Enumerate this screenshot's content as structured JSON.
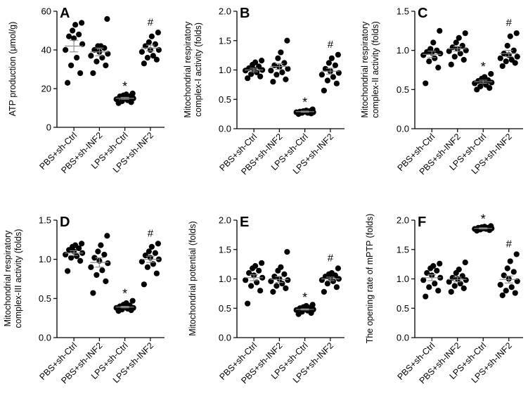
{
  "chart_data": [
    {
      "letter": "A",
      "type": "scatter",
      "ylabel": "ATP production (μmol/g)",
      "ylim": [
        0,
        60
      ],
      "yticks": [
        0,
        20,
        40,
        60
      ],
      "yticklabels": [
        "0",
        "20",
        "40",
        "60"
      ],
      "categories": [
        "PBS+sh-Ctrl",
        "PBS+sh-INF2",
        "LPS+sh-Ctrl",
        "LPS+sh-INF2"
      ],
      "series": [
        {
          "values": [
            23,
            28,
            32,
            36,
            40,
            43,
            46,
            47,
            48,
            50,
            53,
            54
          ],
          "mean": 42,
          "sem": 3
        },
        {
          "values": [
            28,
            32,
            34,
            36,
            37,
            38,
            39,
            40,
            41,
            42,
            42,
            56
          ],
          "mean": 39,
          "sem": 2
        },
        {
          "values": [
            12.5,
            13,
            13.5,
            14,
            14.5,
            15,
            15.5,
            16,
            16,
            16.5,
            17,
            17.5
          ],
          "mean": 15,
          "sem": 0.5
        },
        {
          "values": [
            33,
            35,
            36,
            37,
            39,
            40,
            40,
            42,
            43,
            44,
            47,
            49
          ],
          "mean": 41,
          "sem": 1.5
        }
      ],
      "annotations": [
        "",
        "",
        "*",
        "#"
      ]
    },
    {
      "letter": "B",
      "type": "scatter",
      "ylabel": "Mitochondrial respiratory\ncomplex-I activity (folds)",
      "ylim": [
        0,
        2.0
      ],
      "yticks": [
        0,
        0.5,
        1.0,
        1.5,
        2.0
      ],
      "yticklabels": [
        "0.0",
        "0.5",
        "1.0",
        "1.5",
        "2.0"
      ],
      "categories": [
        "PBS+sh-Ctrl",
        "PBS+sh-INF2",
        "LPS+sh-Ctrl",
        "LPS+sh-INF2"
      ],
      "series": [
        {
          "values": [
            0.86,
            0.89,
            0.93,
            0.96,
            0.99,
            1.0,
            1.01,
            1.03,
            1.06,
            1.09,
            1.13,
            1.16
          ],
          "mean": 1.0,
          "sem": 0.03
        },
        {
          "values": [
            0.8,
            0.84,
            0.92,
            0.96,
            0.99,
            1.02,
            1.05,
            1.08,
            1.12,
            1.2,
            1.3,
            1.5
          ],
          "mean": 1.06,
          "sem": 0.05
        },
        {
          "values": [
            0.25,
            0.26,
            0.27,
            0.27,
            0.28,
            0.28,
            0.29,
            0.29,
            0.3,
            0.3,
            0.31,
            0.33
          ],
          "mean": 0.29,
          "sem": 0.01
        },
        {
          "values": [
            0.65,
            0.77,
            0.82,
            0.88,
            0.92,
            0.95,
            0.98,
            1.02,
            1.08,
            1.12,
            1.2,
            1.26
          ],
          "mean": 0.98,
          "sem": 0.05
        }
      ],
      "annotations": [
        "",
        "",
        "*",
        "#"
      ]
    },
    {
      "letter": "C",
      "type": "scatter",
      "ylabel": "Mitochondrial respiratory\ncomplex-II activity (folds)",
      "ylim": [
        0,
        1.5
      ],
      "yticks": [
        0,
        0.5,
        1.0,
        1.5
      ],
      "yticklabels": [
        "0.0",
        "0.5",
        "1.0",
        "1.5"
      ],
      "categories": [
        "PBS+sh-Ctrl",
        "PBS+sh-INF2",
        "LPS+sh-Ctrl",
        "LPS+sh-INF2"
      ],
      "series": [
        {
          "values": [
            0.58,
            0.78,
            0.86,
            0.9,
            0.94,
            0.96,
            0.97,
            0.98,
            1.0,
            1.02,
            1.1,
            1.25
          ],
          "mean": 0.95,
          "sem": 0.04
        },
        {
          "values": [
            0.82,
            0.88,
            0.92,
            0.96,
            0.99,
            1.0,
            1.02,
            1.04,
            1.06,
            1.1,
            1.16,
            1.22
          ],
          "mean": 1.02,
          "sem": 0.03
        },
        {
          "values": [
            0.5,
            0.52,
            0.54,
            0.56,
            0.58,
            0.59,
            0.6,
            0.61,
            0.62,
            0.64,
            0.66,
            0.7
          ],
          "mean": 0.6,
          "sem": 0.02
        },
        {
          "values": [
            0.8,
            0.84,
            0.86,
            0.88,
            0.9,
            0.92,
            0.94,
            0.96,
            1.0,
            1.06,
            1.18,
            1.22
          ],
          "mean": 0.96,
          "sem": 0.04
        }
      ],
      "annotations": [
        "",
        "",
        "*",
        "#"
      ]
    },
    {
      "letter": "D",
      "type": "scatter",
      "ylabel": "Mitochondrial respiratory\ncomplex-III activity (folds)",
      "ylim": [
        0,
        1.5
      ],
      "yticks": [
        0,
        0.5,
        1.0,
        1.5
      ],
      "yticklabels": [
        "0.0",
        "0.5",
        "1.0",
        "1.5"
      ],
      "categories": [
        "PBS+sh-Ctrl",
        "PBS+sh-INF2",
        "LPS+sh-Ctrl",
        "LPS+sh-INF2"
      ],
      "series": [
        {
          "values": [
            0.85,
            0.98,
            1.02,
            1.04,
            1.06,
            1.08,
            1.1,
            1.12,
            1.14,
            1.16,
            1.18,
            1.2
          ],
          "mean": 1.08,
          "sem": 0.03
        },
        {
          "values": [
            0.57,
            0.72,
            0.8,
            0.86,
            0.9,
            0.95,
            0.98,
            1.02,
            1.06,
            1.1,
            1.18,
            1.3
          ],
          "mean": 0.96,
          "sem": 0.06
        },
        {
          "values": [
            0.34,
            0.35,
            0.36,
            0.37,
            0.38,
            0.38,
            0.39,
            0.4,
            0.41,
            0.42,
            0.44,
            0.47
          ],
          "mean": 0.39,
          "sem": 0.01
        },
        {
          "values": [
            0.68,
            0.82,
            0.9,
            0.94,
            0.97,
            1.0,
            1.02,
            1.05,
            1.08,
            1.1,
            1.16,
            1.2
          ],
          "mean": 1.0,
          "sem": 0.04
        }
      ],
      "annotations": [
        "",
        "",
        "*",
        "#"
      ]
    },
    {
      "letter": "E",
      "type": "scatter",
      "ylabel": "Mitochondrial potential (folds)",
      "ylim": [
        0,
        2.0
      ],
      "yticks": [
        0,
        0.5,
        1.0,
        1.5,
        2.0
      ],
      "yticklabels": [
        "0.0",
        "0.5",
        "1.0",
        "1.5",
        "2.0"
      ],
      "categories": [
        "PBS+sh-Ctrl",
        "PBS+sh-INF2",
        "LPS+sh-Ctrl",
        "LPS+sh-INF2"
      ],
      "series": [
        {
          "values": [
            0.58,
            0.8,
            0.88,
            0.94,
            0.98,
            1.02,
            1.06,
            1.1,
            1.14,
            1.18,
            1.22,
            1.27
          ],
          "mean": 1.02,
          "sem": 0.05
        },
        {
          "values": [
            0.78,
            0.84,
            0.88,
            0.92,
            0.96,
            0.98,
            1.0,
            1.04,
            1.08,
            1.14,
            1.2,
            1.46
          ],
          "mean": 0.99,
          "sem": 0.05
        },
        {
          "values": [
            0.4,
            0.42,
            0.44,
            0.46,
            0.47,
            0.48,
            0.49,
            0.5,
            0.51,
            0.52,
            0.54,
            0.56
          ],
          "mean": 0.48,
          "sem": 0.01
        },
        {
          "values": [
            0.78,
            0.86,
            0.92,
            0.96,
            0.98,
            1.0,
            1.02,
            1.04,
            1.06,
            1.08,
            1.1,
            1.18
          ],
          "mean": 1.0,
          "sem": 0.03
        }
      ],
      "annotations": [
        "",
        "",
        "*",
        "#"
      ]
    },
    {
      "letter": "F",
      "type": "scatter",
      "ylabel": "The opening rate of mPTP (folds)",
      "ylim": [
        0,
        2.0
      ],
      "yticks": [
        0,
        0.5,
        1.0,
        1.5,
        2.0
      ],
      "yticklabels": [
        "0.0",
        "0.5",
        "1.0",
        "1.5",
        "2.0"
      ],
      "categories": [
        "PBS+sh-Ctrl",
        "PBS+sh-INF2",
        "LPS+sh-Ctrl",
        "LPS+sh-INF2"
      ],
      "series": [
        {
          "values": [
            0.7,
            0.8,
            0.86,
            0.92,
            0.98,
            1.02,
            1.06,
            1.1,
            1.14,
            1.18,
            1.22,
            1.26
          ],
          "mean": 1.02,
          "sem": 0.05
        },
        {
          "values": [
            0.78,
            0.84,
            0.88,
            0.92,
            0.95,
            0.98,
            1.0,
            1.02,
            1.05,
            1.1,
            1.16,
            1.28
          ],
          "mean": 0.99,
          "sem": 0.04
        },
        {
          "values": [
            1.82,
            1.83,
            1.84,
            1.85,
            1.85,
            1.86,
            1.86,
            1.87,
            1.87,
            1.88,
            1.89,
            1.9
          ],
          "mean": 1.86,
          "sem": 0.01
        },
        {
          "values": [
            0.72,
            0.76,
            0.8,
            0.86,
            0.9,
            0.96,
            1.0,
            1.06,
            1.12,
            1.18,
            1.3,
            1.42
          ],
          "mean": 0.99,
          "sem": 0.06
        }
      ],
      "annotations": [
        "",
        "",
        "*",
        "#"
      ]
    }
  ]
}
